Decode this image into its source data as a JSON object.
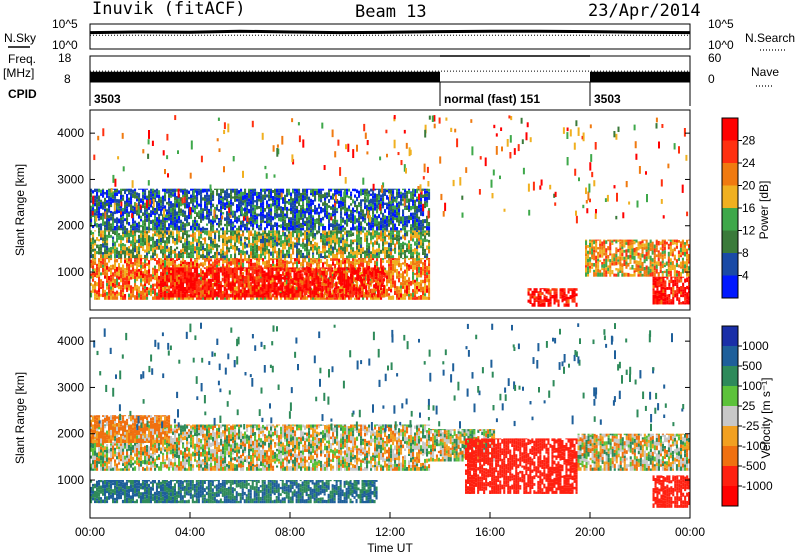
{
  "header": {
    "station": "Inuvik (fitACF)",
    "beam": "Beam 13",
    "date": "23/Apr/2014"
  },
  "side_labels": {
    "nsky": "N.Sky",
    "freq_line1": "Freq.",
    "freq_line2": "[MHz]",
    "cpid": "CPID",
    "nsearch": "N.Search",
    "nave": "Nave"
  },
  "colors": {
    "power_scale": [
      "#0018ff",
      "#1a4aa6",
      "#3a7a3a",
      "#3ea84a",
      "#f0b020",
      "#f07a10",
      "#ff3010",
      "#ff0000"
    ],
    "velocity_scale": [
      "#1a2fa8",
      "#1e5f9a",
      "#2e8a5a",
      "#5cc23a",
      "#c8c8c8",
      "#f2a020",
      "#f07010",
      "#ff2010",
      "#ff0000"
    ],
    "trace": "#000000"
  },
  "chart_data": [
    {
      "type": "line",
      "panel": "noise",
      "y_left_ticks": [
        "10^5",
        "10^0"
      ],
      "y_right_ticks": [
        "10^5",
        "10^0"
      ],
      "series": [
        {
          "name": "N.Sky",
          "x": [
            0,
            2,
            4,
            6,
            8,
            10,
            12,
            14,
            16,
            18,
            20,
            22,
            24
          ],
          "values": [
            3000,
            4000,
            3500,
            6000,
            4000,
            3000,
            3500,
            5000,
            6000,
            6000,
            5000,
            3500,
            3000
          ]
        },
        {
          "name": "N.Search",
          "x": [
            0,
            24
          ],
          "values": [
            800,
            800
          ]
        }
      ]
    },
    {
      "type": "line",
      "panel": "frequency",
      "y_left_ticks": [
        "18",
        "8"
      ],
      "y_right_ticks": [
        "60",
        "0"
      ],
      "series": [
        {
          "name": "Freq.",
          "x": [
            0,
            14,
            14,
            20,
            20,
            24
          ],
          "values": [
            10,
            10,
            18,
            18,
            10,
            10
          ]
        },
        {
          "name": "Nave",
          "x": [
            0,
            24
          ],
          "values": [
            25,
            25
          ]
        }
      ]
    },
    {
      "type": "table",
      "panel": "cpid",
      "segments": [
        {
          "start": "00:00",
          "end": "14:00",
          "label": "3503"
        },
        {
          "start": "14:00",
          "end": "20:00",
          "label": "normal (fast) 151"
        },
        {
          "start": "20:00",
          "end": "00:00",
          "label": "3503"
        }
      ]
    },
    {
      "type": "heatmap",
      "panel": "power",
      "ylabel": "Slant Range [km]",
      "y_ticks": [
        "1000",
        "2000",
        "3000",
        "4000"
      ],
      "ylim": [
        180,
        4500
      ],
      "xlim": [
        0,
        24
      ],
      "colorbar": {
        "label": "Power [dB]",
        "ticks": [
          "4",
          "8",
          "12",
          "16",
          "20",
          "24",
          "28"
        ],
        "range": [
          0,
          32
        ]
      },
      "bands": [
        {
          "x0": 0,
          "x1": 13.6,
          "r0": 400,
          "r1": 1300,
          "value": 22
        },
        {
          "x0": 0,
          "x1": 13.6,
          "r0": 1300,
          "r1": 1900,
          "value": 14
        },
        {
          "x0": 0,
          "x1": 13.6,
          "r0": 1900,
          "r1": 2800,
          "value": 7
        },
        {
          "x0": 2.8,
          "x1": 11.8,
          "r0": 450,
          "r1": 1100,
          "value": 30
        },
        {
          "x0": 17.5,
          "x1": 19.5,
          "r0": 250,
          "r1": 650,
          "value": 30
        },
        {
          "x0": 19.8,
          "x1": 24,
          "r0": 900,
          "r1": 1700,
          "value": 20
        },
        {
          "x0": 22.5,
          "x1": 24,
          "r0": 300,
          "r1": 900,
          "value": 30
        }
      ]
    },
    {
      "type": "heatmap",
      "panel": "velocity",
      "ylabel": "Slant Range [km]",
      "xlabel": "Time UT",
      "x_ticks": [
        "00:00",
        "04:00",
        "08:00",
        "12:00",
        "16:00",
        "20:00",
        "00:00"
      ],
      "y_ticks": [
        "1000",
        "2000",
        "3000",
        "4000"
      ],
      "ylim": [
        180,
        4500
      ],
      "xlim": [
        0,
        24
      ],
      "colorbar": {
        "label": "Velocity [m s⁻¹]",
        "ticks": [
          "1000",
          "500",
          "100",
          "25",
          "-25",
          "-100",
          "-500",
          "-1000"
        ],
        "range": [
          -1200,
          1200
        ]
      },
      "bands": [
        {
          "x0": 0,
          "x1": 11.5,
          "r0": 500,
          "r1": 1000,
          "value": 300
        },
        {
          "x0": 0,
          "x1": 13.6,
          "r0": 1200,
          "r1": 2200,
          "value": 0
        },
        {
          "x0": 0,
          "x1": 3.2,
          "r0": 1800,
          "r1": 2400,
          "value": -100
        },
        {
          "x0": 13.6,
          "x1": 16.2,
          "r0": 1400,
          "r1": 2100,
          "value": 0
        },
        {
          "x0": 15,
          "x1": 19.5,
          "r0": 700,
          "r1": 1900,
          "value": -400
        },
        {
          "x0": 19.5,
          "x1": 24,
          "r0": 1200,
          "r1": 2000,
          "value": 0
        },
        {
          "x0": 22.5,
          "x1": 24,
          "r0": 400,
          "r1": 1100,
          "value": -500
        }
      ]
    }
  ]
}
